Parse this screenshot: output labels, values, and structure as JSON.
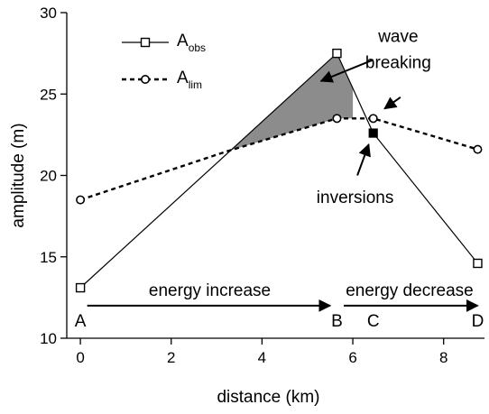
{
  "chart_data": {
    "type": "line",
    "title": "",
    "xlabel": "distance (km)",
    "ylabel": "amplitude (m)",
    "xlim": [
      -0.3,
      8.9
    ],
    "ylim": [
      10,
      30
    ],
    "xticks": [
      0,
      2,
      4,
      6,
      8
    ],
    "yticks": [
      10,
      15,
      20,
      25,
      30
    ],
    "grid": false,
    "legend_position": "top-left",
    "series": [
      {
        "name": "A",
        "name_sub": "obs",
        "line": "solid",
        "marker": "open-square",
        "x": [
          0.0,
          5.65,
          6.45,
          8.75
        ],
        "y": [
          13.1,
          27.5,
          22.6,
          14.6
        ],
        "filled_points": [
          2
        ]
      },
      {
        "name": "A",
        "name_sub": "lim",
        "line": "dashed",
        "marker": "open-circle",
        "x": [
          0.0,
          3.25,
          5.65,
          6.45,
          8.75
        ],
        "y": [
          18.5,
          21.5,
          23.5,
          23.5,
          21.6
        ],
        "marked_points": [
          0,
          2,
          3,
          4
        ]
      }
    ],
    "shaded_region": {
      "between": [
        "obs",
        "lim"
      ],
      "x_range": [
        3.25,
        6.0
      ],
      "color": "#8c8c8c"
    },
    "point_labels": [
      {
        "text": "A",
        "x": 0.0,
        "y": 11.1
      },
      {
        "text": "B",
        "x": 5.65,
        "y": 11.1
      },
      {
        "text": "C",
        "x": 6.45,
        "y": 11.1
      },
      {
        "text": "D",
        "x": 8.75,
        "y": 11.1
      }
    ],
    "arrows": [
      {
        "from": [
          0.15,
          12.0
        ],
        "to": [
          5.5,
          12.0
        ]
      },
      {
        "from": [
          5.8,
          12.0
        ],
        "to": [
          8.75,
          12.0
        ]
      },
      {
        "from": [
          6.45,
          27.1
        ],
        "to": [
          5.3,
          25.8
        ]
      },
      {
        "from": [
          7.05,
          24.8
        ],
        "to": [
          6.7,
          24.1
        ]
      },
      {
        "from": [
          6.1,
          20.0
        ],
        "to": [
          6.35,
          21.9
        ]
      }
    ],
    "annotations": [
      {
        "text": "wave",
        "x": 7.0,
        "y": 28.2,
        "anchor": "middle"
      },
      {
        "text": "breaking",
        "x": 7.0,
        "y": 26.6,
        "anchor": "middle"
      },
      {
        "text": "inversions",
        "x": 6.05,
        "y": 18.3,
        "anchor": "middle"
      },
      {
        "text": "energy increase",
        "x": 2.85,
        "y": 12.6,
        "anchor": "middle"
      },
      {
        "text": "energy decrease",
        "x": 7.25,
        "y": 12.6,
        "anchor": "middle"
      }
    ]
  }
}
